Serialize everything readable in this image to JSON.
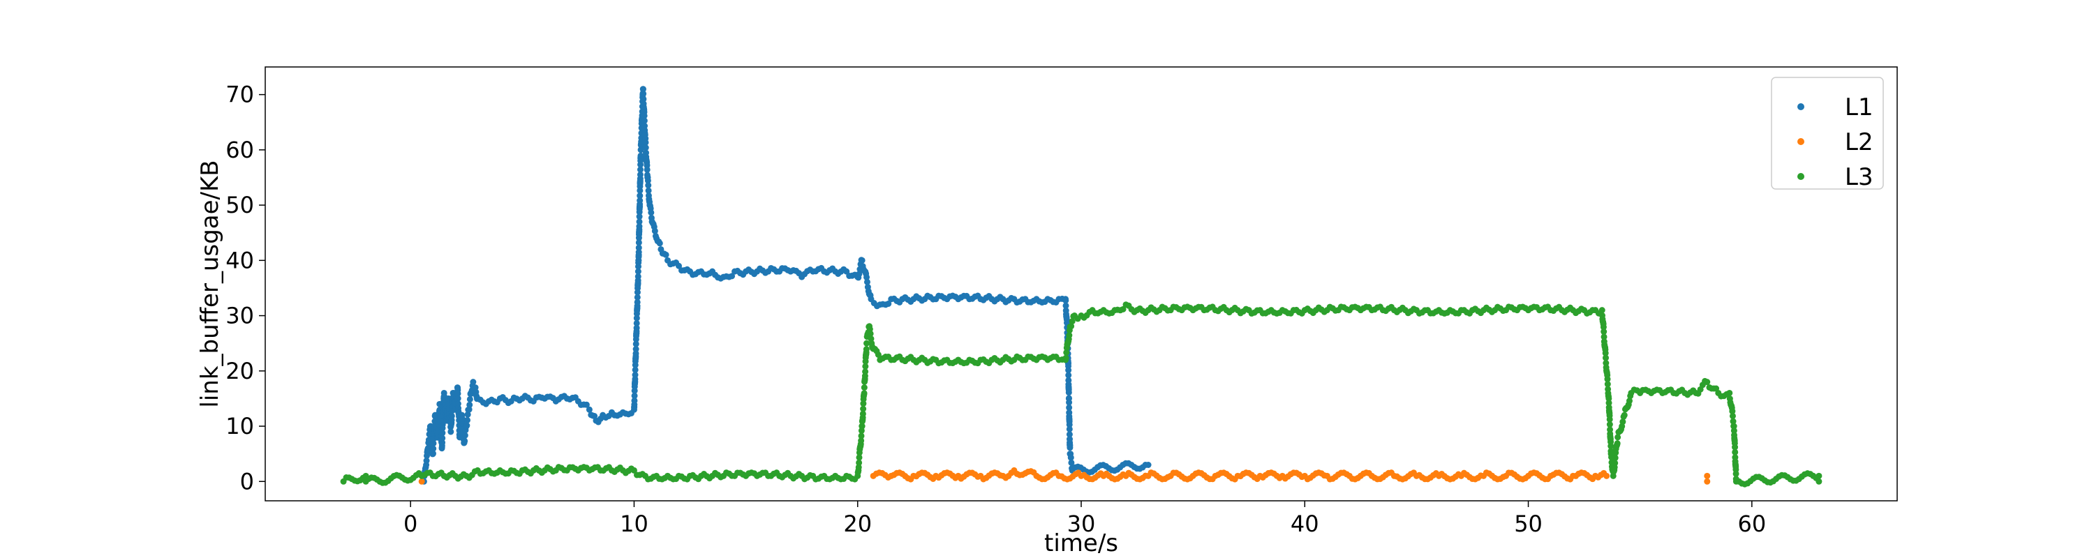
{
  "chart_data": {
    "type": "scatter",
    "title": "",
    "xlabel": "time/s",
    "ylabel": "link_buffer_usgae/KB",
    "xlim": [
      -6.5,
      66.5
    ],
    "ylim": [
      -3.5,
      75
    ],
    "xticks": [
      0,
      10,
      20,
      30,
      40,
      50,
      60
    ],
    "yticks": [
      0,
      10,
      20,
      30,
      40,
      50,
      60,
      70
    ],
    "grid": false,
    "legend": {
      "position": "top-right",
      "entries": [
        "L1",
        "L2",
        "L3"
      ]
    },
    "series": [
      {
        "name": "L1",
        "color": "#1f77b4",
        "points": [
          [
            0.6,
            0
          ],
          [
            0.7,
            3
          ],
          [
            0.8,
            7
          ],
          [
            0.9,
            10
          ],
          [
            1.0,
            5
          ],
          [
            1.1,
            12
          ],
          [
            1.2,
            8
          ],
          [
            1.3,
            14
          ],
          [
            1.4,
            6
          ],
          [
            1.5,
            16
          ],
          [
            1.6,
            11
          ],
          [
            1.7,
            15
          ],
          [
            1.8,
            9
          ],
          [
            1.9,
            16
          ],
          [
            2.0,
            13
          ],
          [
            2.1,
            17
          ],
          [
            2.2,
            8
          ],
          [
            2.3,
            12
          ],
          [
            2.4,
            7
          ],
          [
            2.5,
            10
          ],
          [
            2.6,
            13
          ],
          [
            2.7,
            16
          ],
          [
            2.8,
            18
          ],
          [
            2.9,
            17
          ],
          [
            3.0,
            15
          ],
          [
            3.5,
            14.5
          ],
          [
            4.0,
            15
          ],
          [
            4.5,
            14.5
          ],
          [
            5.0,
            15
          ],
          [
            5.5,
            14.5
          ],
          [
            6.0,
            15
          ],
          [
            6.5,
            14.5
          ],
          [
            7.0,
            15
          ],
          [
            7.5,
            14.5
          ],
          [
            8.0,
            13
          ],
          [
            8.3,
            11
          ],
          [
            8.6,
            12
          ],
          [
            9.0,
            12.5
          ],
          [
            9.5,
            12.5
          ],
          [
            10.0,
            13
          ],
          [
            10.2,
            40
          ],
          [
            10.3,
            60
          ],
          [
            10.4,
            71
          ],
          [
            10.5,
            62
          ],
          [
            10.6,
            55
          ],
          [
            10.7,
            50
          ],
          [
            10.8,
            47
          ],
          [
            11.0,
            44
          ],
          [
            11.2,
            42
          ],
          [
            11.5,
            40
          ],
          [
            12.0,
            39
          ],
          [
            12.5,
            38
          ],
          [
            13.0,
            38
          ],
          [
            13.5,
            38
          ],
          [
            14.0,
            37
          ],
          [
            14.5,
            38
          ],
          [
            15.0,
            38
          ],
          [
            15.5,
            38
          ],
          [
            16.0,
            38
          ],
          [
            16.5,
            38
          ],
          [
            17.0,
            38
          ],
          [
            17.5,
            37
          ],
          [
            18.0,
            38
          ],
          [
            18.5,
            38
          ],
          [
            19.0,
            38
          ],
          [
            19.5,
            38
          ],
          [
            20.0,
            37
          ],
          [
            20.2,
            40
          ],
          [
            20.6,
            33
          ],
          [
            21.0,
            32
          ],
          [
            21.5,
            33
          ],
          [
            22.0,
            33
          ],
          [
            22.5,
            33
          ],
          [
            23.0,
            33
          ],
          [
            23.5,
            33
          ],
          [
            24.0,
            33
          ],
          [
            24.5,
            33
          ],
          [
            25.0,
            33
          ],
          [
            25.5,
            33
          ],
          [
            26.0,
            33
          ],
          [
            26.5,
            33
          ],
          [
            27.0,
            33
          ],
          [
            27.5,
            33
          ],
          [
            28.0,
            33
          ],
          [
            28.5,
            33
          ],
          [
            29.0,
            33
          ],
          [
            29.3,
            33
          ],
          [
            29.4,
            25
          ],
          [
            29.45,
            15
          ],
          [
            29.5,
            5
          ],
          [
            29.6,
            2
          ],
          [
            33.0,
            3
          ]
        ]
      },
      {
        "name": "L2",
        "color": "#ff7f0e",
        "points": [
          [
            0.5,
            0
          ],
          [
            20.7,
            1
          ],
          [
            21.5,
            1
          ],
          [
            22.5,
            1
          ],
          [
            23.5,
            1
          ],
          [
            24.5,
            1
          ],
          [
            25.5,
            1
          ],
          [
            26.5,
            1
          ],
          [
            27.0,
            2
          ],
          [
            28.0,
            1
          ],
          [
            29.0,
            1
          ],
          [
            30.0,
            1
          ],
          [
            31.0,
            1
          ],
          [
            32.0,
            1
          ],
          [
            33.0,
            1
          ],
          [
            34.0,
            1
          ],
          [
            35.0,
            1
          ],
          [
            36.0,
            1
          ],
          [
            37.0,
            1
          ],
          [
            38.0,
            1
          ],
          [
            39.0,
            1
          ],
          [
            40.0,
            1
          ],
          [
            41.0,
            1
          ],
          [
            42.0,
            1
          ],
          [
            43.0,
            1
          ],
          [
            44.0,
            1
          ],
          [
            45.0,
            1
          ],
          [
            46.0,
            1
          ],
          [
            47.0,
            1
          ],
          [
            48.0,
            1
          ],
          [
            49.0,
            1
          ],
          [
            50.0,
            1
          ],
          [
            51.0,
            1
          ],
          [
            52.0,
            1
          ],
          [
            53.0,
            1
          ],
          [
            53.5,
            1
          ],
          [
            58.0,
            1
          ],
          [
            58.0,
            0
          ]
        ]
      },
      {
        "name": "L3",
        "color": "#2ca02c",
        "points": [
          [
            -3.0,
            0
          ],
          [
            -2.0,
            1
          ],
          [
            -2.0,
            0
          ],
          [
            0.5,
            1
          ],
          [
            1.0,
            1
          ],
          [
            1.5,
            1
          ],
          [
            2.0,
            1
          ],
          [
            2.5,
            1
          ],
          [
            3.0,
            2
          ],
          [
            3.5,
            2
          ],
          [
            4.0,
            2
          ],
          [
            4.5,
            2
          ],
          [
            5.0,
            2
          ],
          [
            5.5,
            2
          ],
          [
            6.0,
            2
          ],
          [
            6.5,
            2
          ],
          [
            7.0,
            2
          ],
          [
            7.5,
            2
          ],
          [
            8.0,
            2
          ],
          [
            8.5,
            2
          ],
          [
            9.0,
            2
          ],
          [
            9.5,
            2
          ],
          [
            10.0,
            2
          ],
          [
            10.5,
            1
          ],
          [
            11.0,
            1
          ],
          [
            11.5,
            1
          ],
          [
            12.0,
            1
          ],
          [
            12.5,
            1
          ],
          [
            13.0,
            1
          ],
          [
            13.5,
            1
          ],
          [
            14.0,
            1
          ],
          [
            14.5,
            1
          ],
          [
            15.0,
            1
          ],
          [
            15.5,
            1
          ],
          [
            16.0,
            1
          ],
          [
            16.5,
            1
          ],
          [
            17.0,
            1
          ],
          [
            17.5,
            1
          ],
          [
            18.0,
            1
          ],
          [
            18.5,
            1
          ],
          [
            19.0,
            1
          ],
          [
            19.5,
            1
          ],
          [
            20.0,
            1
          ],
          [
            20.2,
            10
          ],
          [
            20.3,
            17
          ],
          [
            20.4,
            25
          ],
          [
            20.5,
            28
          ],
          [
            20.7,
            24
          ],
          [
            21.0,
            22
          ],
          [
            21.5,
            22
          ],
          [
            22.0,
            22
          ],
          [
            22.5,
            22
          ],
          [
            23.0,
            22
          ],
          [
            23.5,
            22
          ],
          [
            24.0,
            22
          ],
          [
            24.5,
            22
          ],
          [
            25.0,
            22
          ],
          [
            25.5,
            22
          ],
          [
            26.0,
            22
          ],
          [
            26.5,
            22
          ],
          [
            27.0,
            22
          ],
          [
            27.5,
            22
          ],
          [
            28.0,
            22
          ],
          [
            28.5,
            22
          ],
          [
            29.0,
            22
          ],
          [
            29.3,
            22
          ],
          [
            29.5,
            28
          ],
          [
            29.7,
            30
          ],
          [
            30.0,
            30
          ],
          [
            30.5,
            31
          ],
          [
            31.0,
            31
          ],
          [
            31.5,
            31
          ],
          [
            32.0,
            32
          ],
          [
            32.5,
            31
          ],
          [
            33.0,
            31
          ],
          [
            33.5,
            31
          ],
          [
            34.0,
            31
          ],
          [
            34.5,
            31
          ],
          [
            35.0,
            31
          ],
          [
            35.5,
            31
          ],
          [
            36.0,
            31
          ],
          [
            36.5,
            31
          ],
          [
            37.0,
            31
          ],
          [
            37.5,
            31
          ],
          [
            38.0,
            31
          ],
          [
            38.5,
            31
          ],
          [
            39.0,
            31
          ],
          [
            39.5,
            31
          ],
          [
            40.0,
            31
          ],
          [
            40.5,
            31
          ],
          [
            41.0,
            31
          ],
          [
            41.5,
            31
          ],
          [
            42.0,
            31
          ],
          [
            42.5,
            31
          ],
          [
            43.0,
            31
          ],
          [
            43.5,
            31
          ],
          [
            44.0,
            31
          ],
          [
            44.5,
            31
          ],
          [
            45.0,
            31
          ],
          [
            45.5,
            31
          ],
          [
            46.0,
            31
          ],
          [
            46.5,
            31
          ],
          [
            47.0,
            31
          ],
          [
            47.5,
            31
          ],
          [
            48.0,
            31
          ],
          [
            48.5,
            31
          ],
          [
            49.0,
            31
          ],
          [
            49.5,
            31
          ],
          [
            50.0,
            31
          ],
          [
            50.5,
            31
          ],
          [
            51.0,
            31
          ],
          [
            51.5,
            31
          ],
          [
            52.0,
            31
          ],
          [
            52.5,
            31
          ],
          [
            53.0,
            31
          ],
          [
            53.3,
            31
          ],
          [
            53.6,
            15
          ],
          [
            53.7,
            5
          ],
          [
            53.8,
            1
          ],
          [
            54.0,
            8
          ],
          [
            54.3,
            12
          ],
          [
            54.6,
            16
          ],
          [
            55.0,
            16
          ],
          [
            55.5,
            16
          ],
          [
            56.0,
            16
          ],
          [
            56.5,
            16
          ],
          [
            57.0,
            16
          ],
          [
            57.5,
            16
          ],
          [
            58.0,
            18
          ],
          [
            58.5,
            16
          ],
          [
            59.0,
            16
          ],
          [
            59.2,
            10
          ],
          [
            59.3,
            0
          ],
          [
            63.0,
            1
          ],
          [
            63.0,
            0
          ]
        ]
      }
    ]
  }
}
